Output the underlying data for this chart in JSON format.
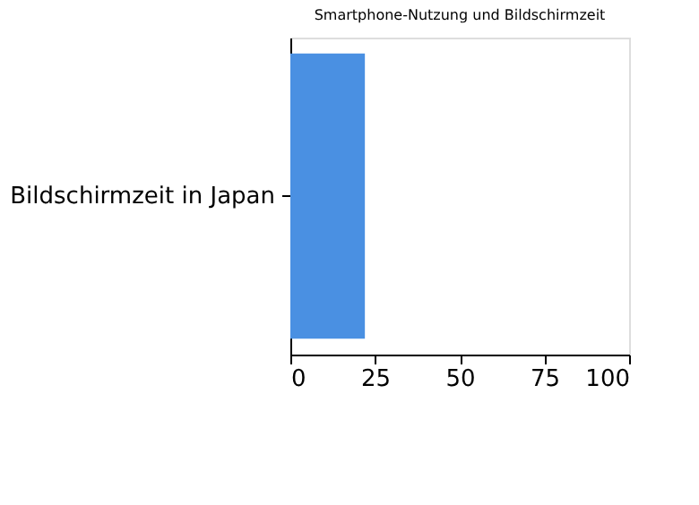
{
  "chart_data": {
    "type": "bar",
    "orientation": "horizontal",
    "title": "Smartphone-Nutzung und Bildschirmzeit",
    "categories": [
      "Bildschirmzeit in Japan"
    ],
    "values": [
      22
    ],
    "color": "#4a90e2",
    "xlim": [
      0,
      100
    ],
    "xticks": [
      0,
      25,
      50,
      75,
      100
    ],
    "grid": false
  }
}
